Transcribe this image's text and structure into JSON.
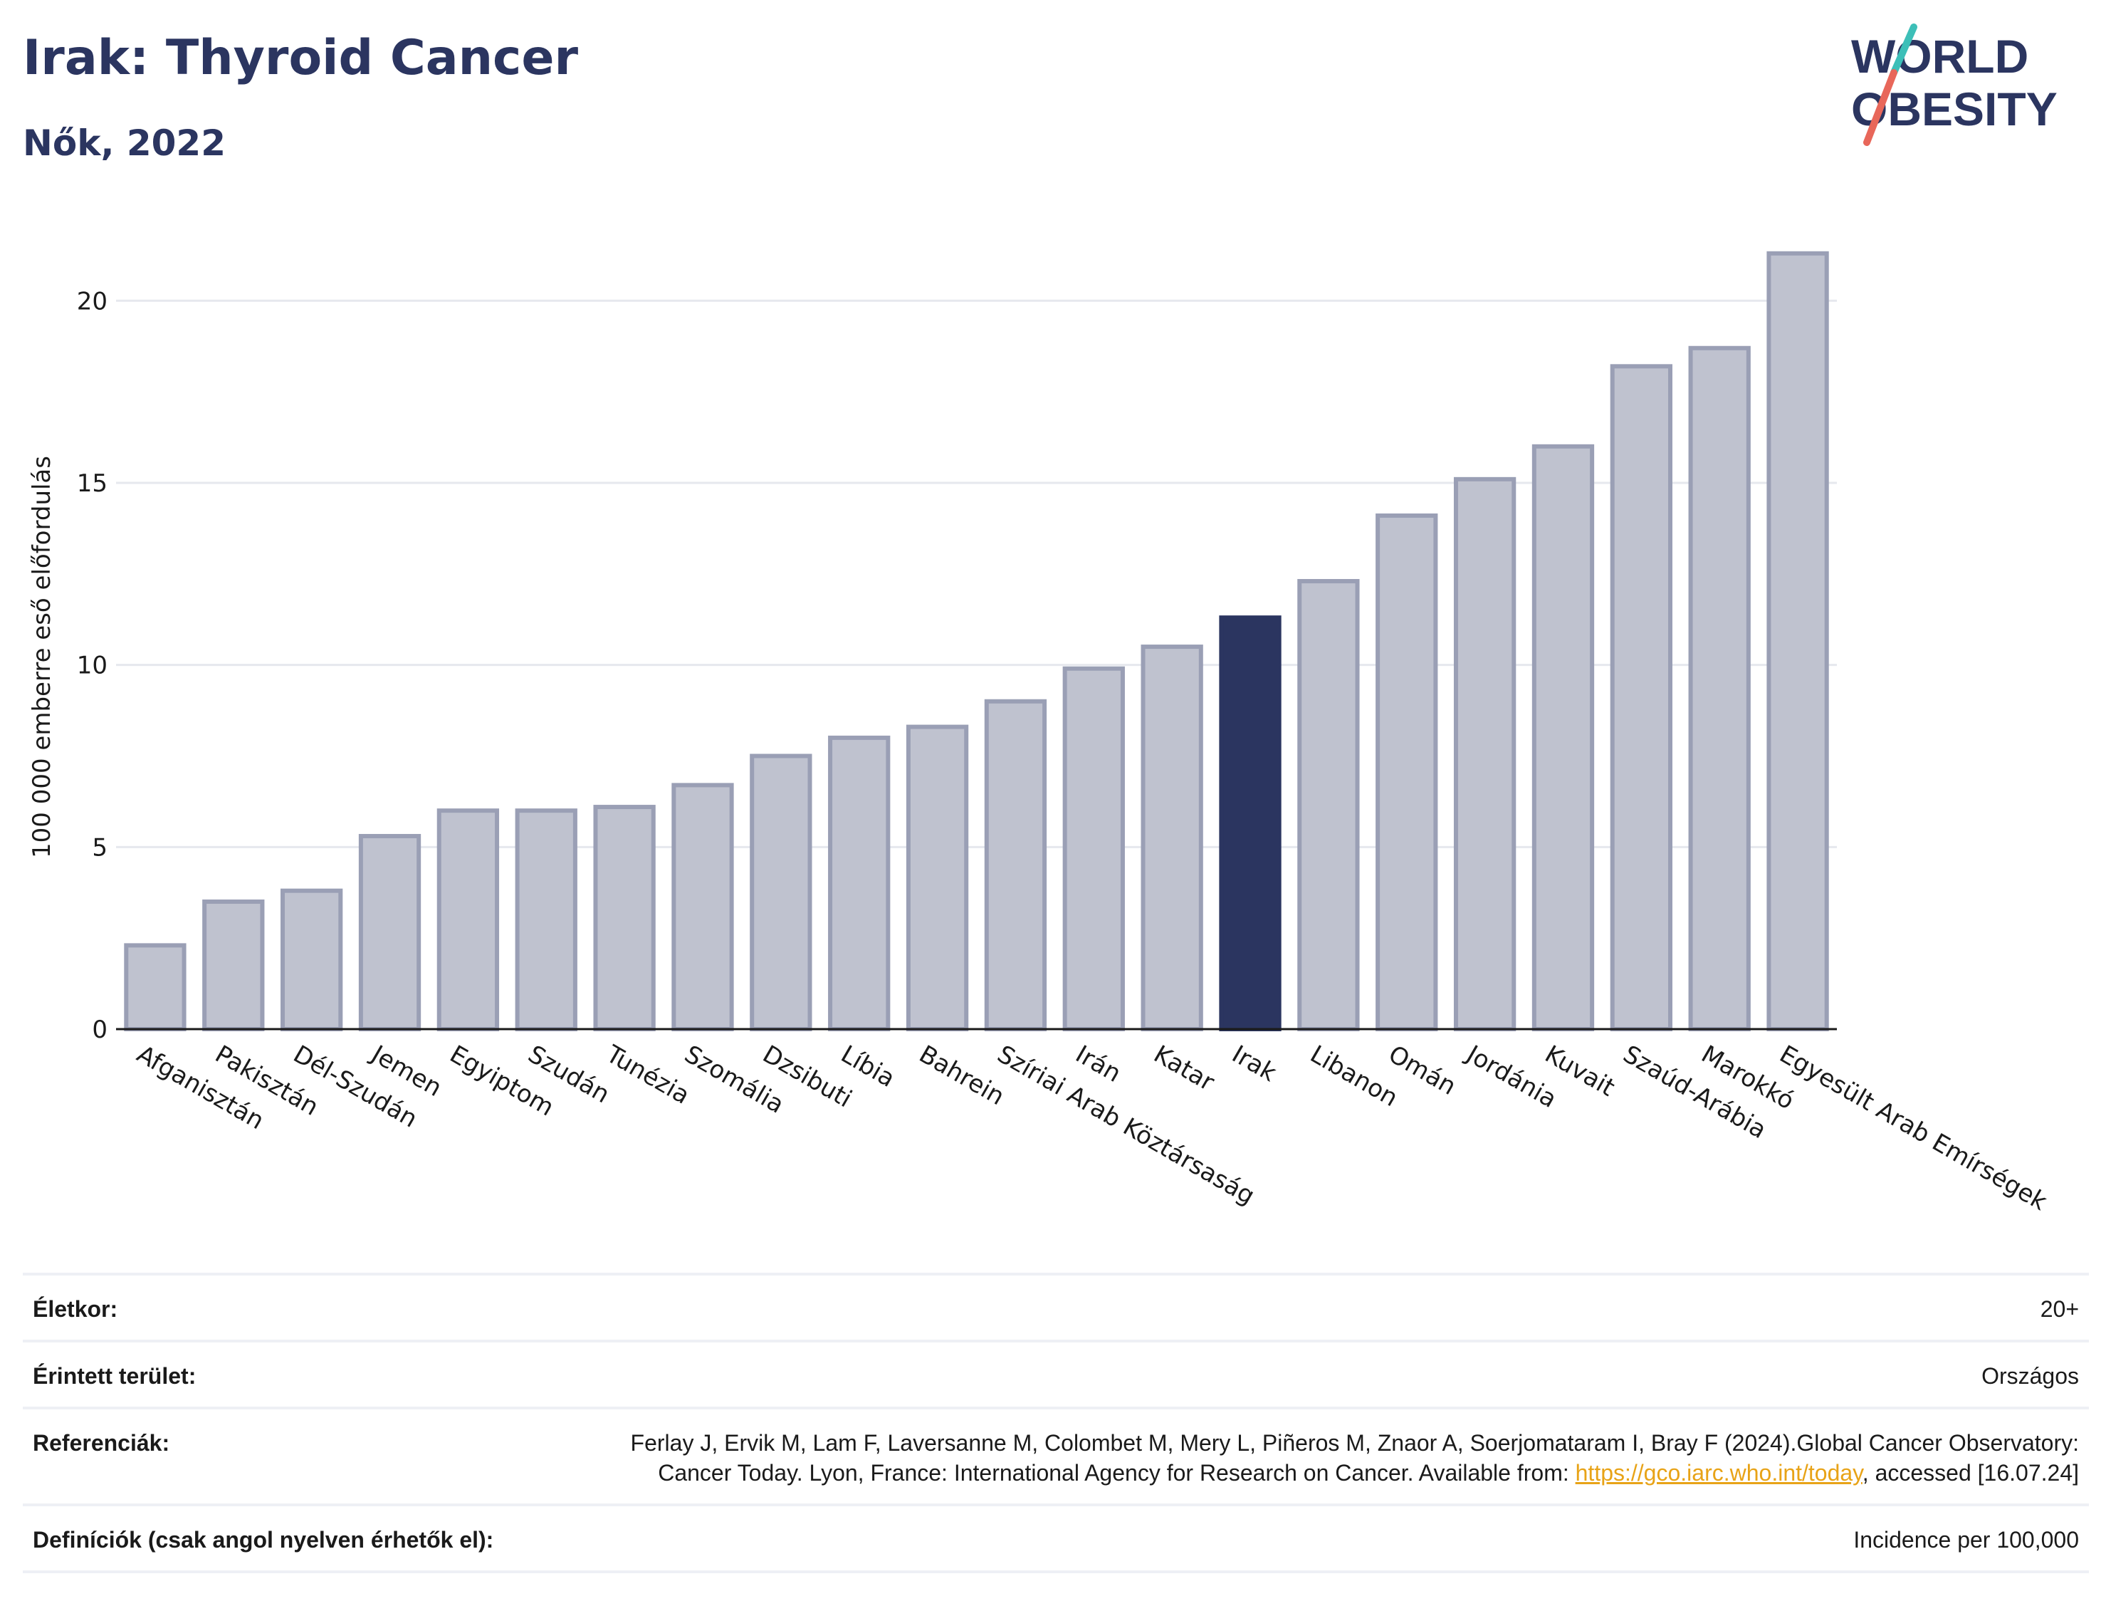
{
  "header": {
    "title": "Irak: Thyroid Cancer",
    "subtitle": "Nők, 2022"
  },
  "logo": {
    "line1": "WORLD",
    "line2": "OBESITY",
    "accent_colors": [
      "#3dbfb8",
      "#e8675a"
    ]
  },
  "chart_data": {
    "type": "bar",
    "ylabel": "100 000 emberre eső előfordulás",
    "ylim": [
      0,
      22
    ],
    "yticks": [
      0,
      5,
      10,
      15,
      20
    ],
    "grid": true,
    "highlight": "Irak",
    "colors": {
      "default": "#bfc2cf",
      "default_border": "#9a9fb5",
      "highlight": "#2b3560"
    },
    "categories": [
      "Afganisztán",
      "Pakisztán",
      "Dél-Szudán",
      "Jemen",
      "Egyiptom",
      "Szudán",
      "Tunézia",
      "Szomália",
      "Dzsibuti",
      "Líbia",
      "Bahrein",
      "Szíriai Arab Köztársaság",
      "Irán",
      "Katar",
      "Irak",
      "Libanon",
      "Omán",
      "Jordánia",
      "Kuvait",
      "Szaúd-Arábia",
      "Marokkó",
      "Egyesült Arab Emírségek"
    ],
    "values": [
      2.3,
      3.5,
      3.8,
      5.3,
      6.0,
      6.0,
      6.1,
      6.7,
      7.5,
      8.0,
      8.3,
      9.0,
      9.9,
      10.5,
      11.3,
      12.3,
      14.1,
      15.1,
      16.0,
      18.2,
      18.7,
      21.3
    ]
  },
  "info": {
    "rows": [
      {
        "label": "Életkor:",
        "value": "20+"
      },
      {
        "label": "Érintett terület:",
        "value": "Országos"
      },
      {
        "label": "Referenciák:",
        "value_pre": "Ferlay J, Ervik M, Lam F, Laversanne M, Colombet M, Mery L, Piñeros M, Znaor A, Soerjomataram I, Bray F (2024).Global Cancer Observatory: Cancer Today. Lyon, France: International Agency for Research on Cancer. Available from: ",
        "link": "https://gco.iarc.who.int/today",
        "value_post": ", accessed [16.07.24]"
      },
      {
        "label": "Definíciók (csak angol nyelven érhetők el):",
        "value": "Incidence per 100,000"
      }
    ]
  }
}
